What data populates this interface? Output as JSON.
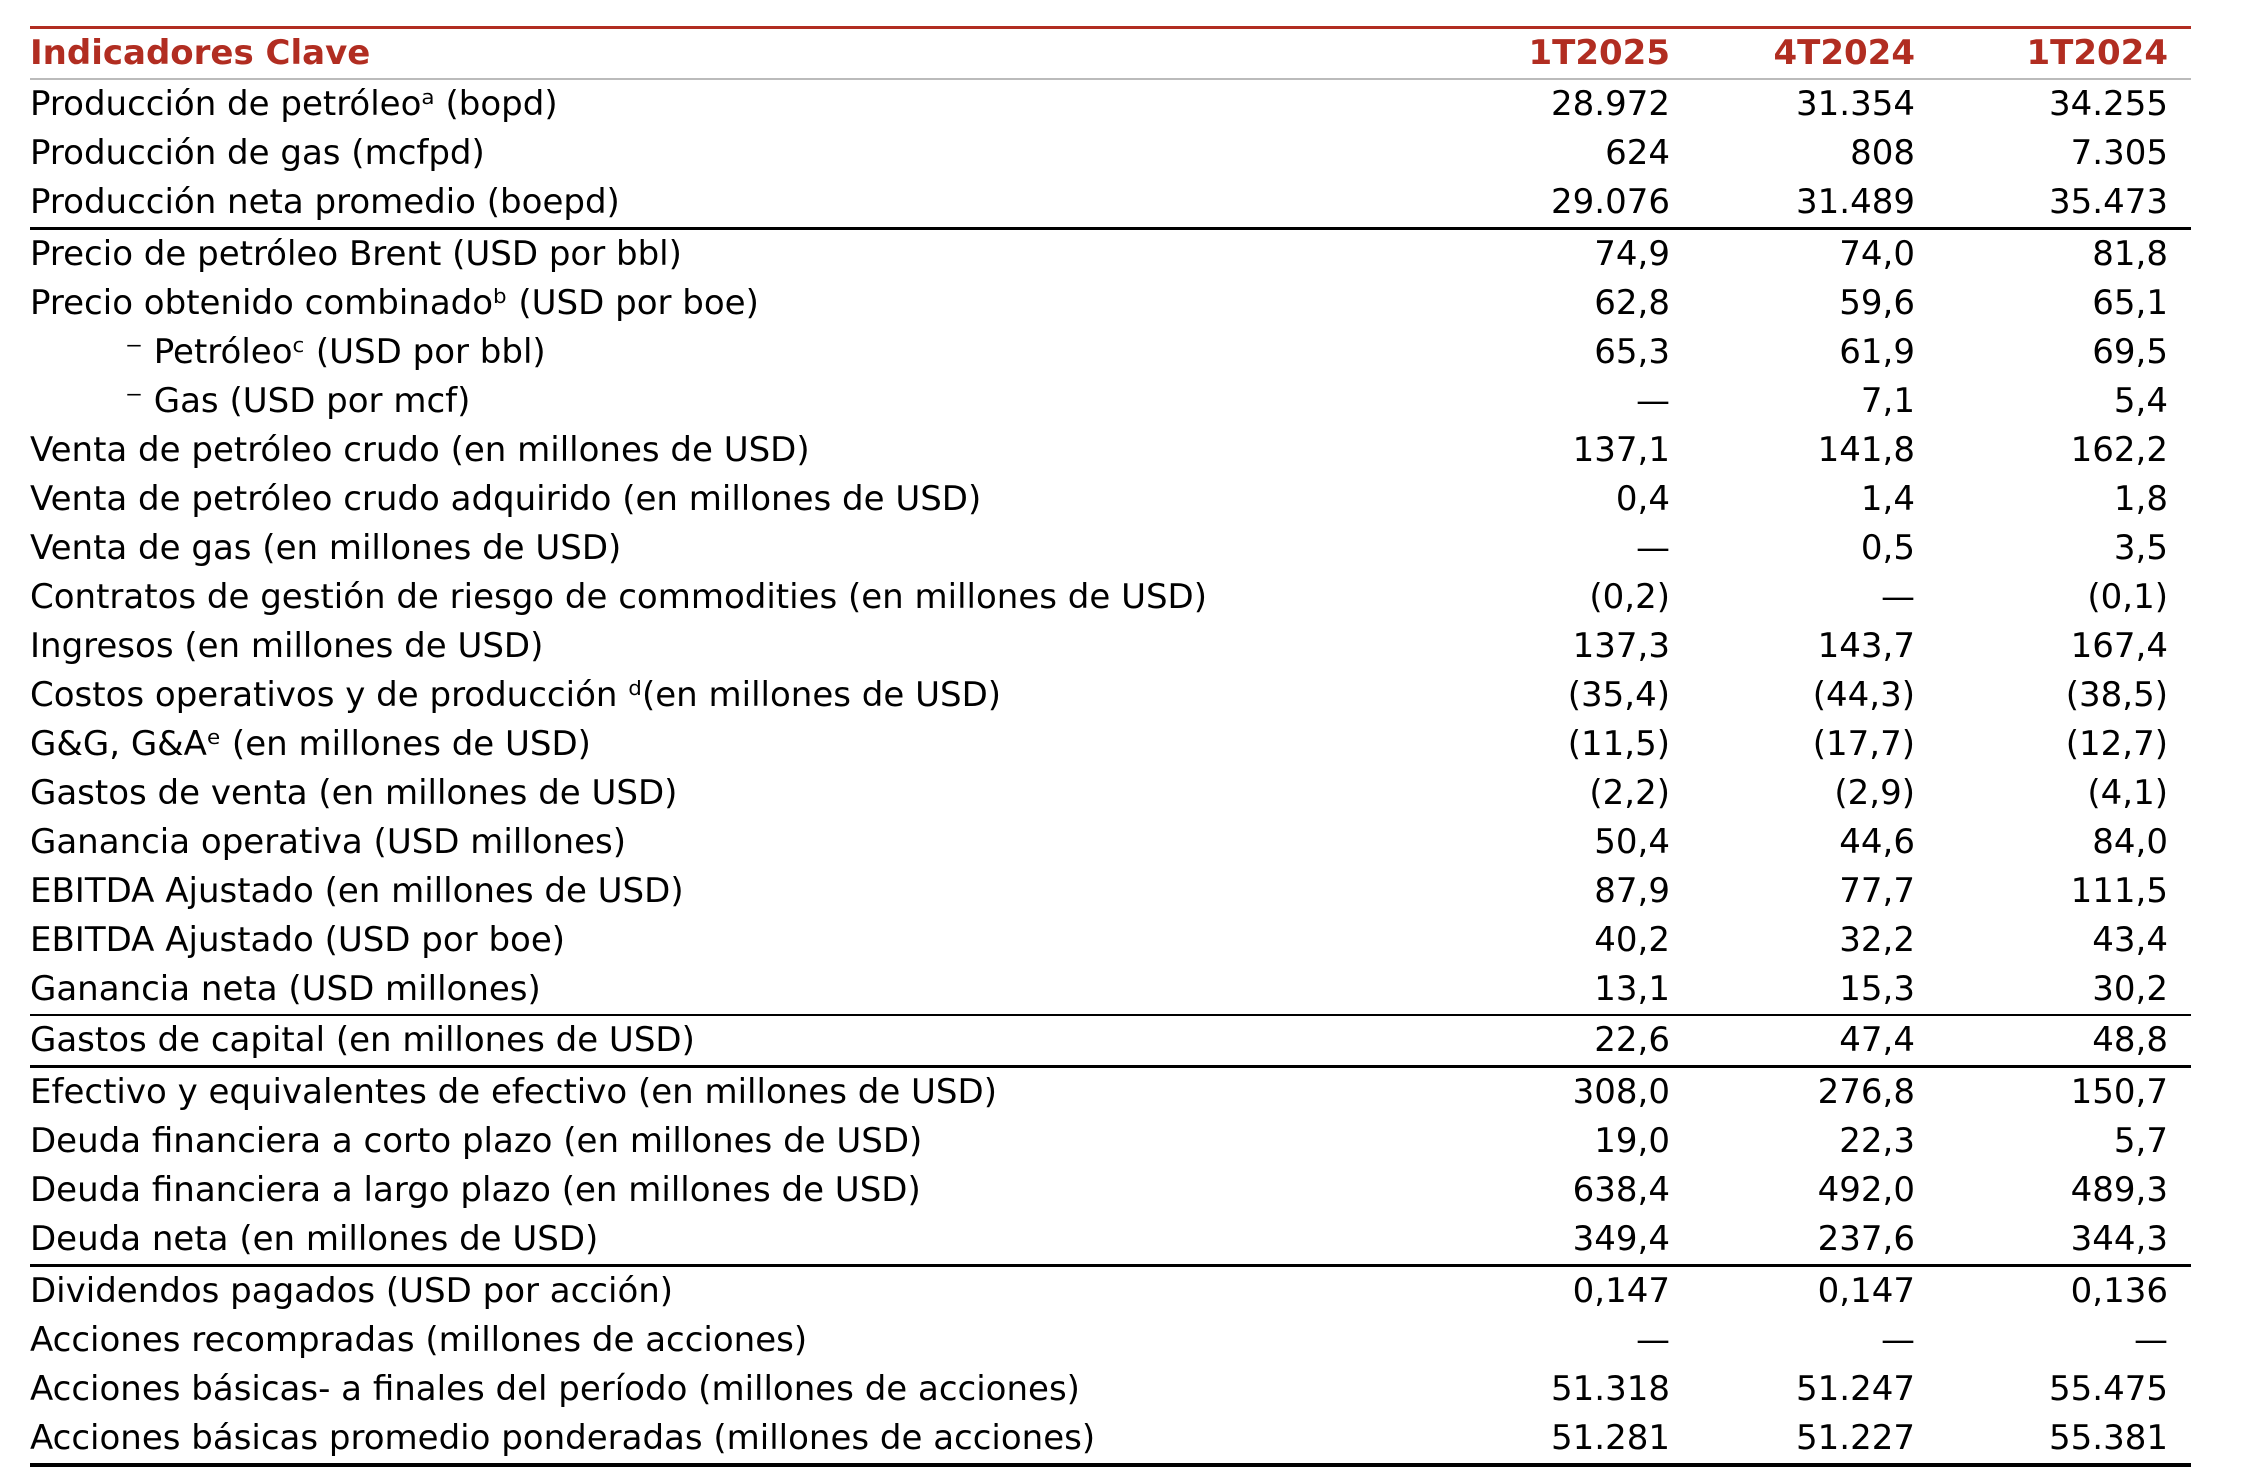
{
  "colors": {
    "accent_red": "#B12D21",
    "header_underline_gray": "#BBBBBB",
    "rule_black": "#000000",
    "text": "#000000",
    "background": "#FFFFFF"
  },
  "table": {
    "header": {
      "label": "Indicadores Clave",
      "columns": [
        "1T2025",
        "4T2024",
        "1T2024"
      ]
    },
    "rows": [
      {
        "label": "Producción de petróleoᵃ (bopd)",
        "values": [
          "28.972",
          "31.354",
          "34.255"
        ]
      },
      {
        "label": "Producción de gas (mcfpd)",
        "values": [
          "624",
          "808",
          "7.305"
        ]
      },
      {
        "label": "Producción neta promedio (boepd)",
        "values": [
          "29.076",
          "31.489",
          "35.473"
        ],
        "divider": "thick"
      },
      {
        "label": "Precio de petróleo Brent (USD por bbl)",
        "values": [
          "74,9",
          "74,0",
          "81,8"
        ]
      },
      {
        "label": "Precio obtenido combinadoᵇ (USD por boe)",
        "values": [
          "62,8",
          "59,6",
          "65,1"
        ]
      },
      {
        "label": "⁻ Petróleoᶜ (USD por bbl)",
        "values": [
          "65,3",
          "61,9",
          "69,5"
        ],
        "indent": true
      },
      {
        "label": "⁻ Gas (USD por mcf)",
        "values": [
          "—",
          "7,1",
          "5,4"
        ],
        "indent": true
      },
      {
        "label": "Venta de petróleo crudo (en millones de USD)",
        "values": [
          "137,1",
          "141,8",
          "162,2"
        ]
      },
      {
        "label": "Venta de petróleo crudo adquirido (en millones de USD)",
        "values": [
          "0,4",
          "1,4",
          "1,8"
        ]
      },
      {
        "label": "Venta de gas (en millones de USD)",
        "values": [
          "—",
          "0,5",
          "3,5"
        ]
      },
      {
        "label": "Contratos de gestión de riesgo de commodities (en millones de USD)",
        "values": [
          "(0,2)",
          "—",
          "(0,1)"
        ]
      },
      {
        "label": "Ingresos (en millones de USD)",
        "values": [
          "137,3",
          "143,7",
          "167,4"
        ]
      },
      {
        "label": "Costos operativos y de producción ᵈ(en millones de USD)",
        "values": [
          "(35,4)",
          "(44,3)",
          "(38,5)"
        ]
      },
      {
        "label": "G&G, G&Aᵉ (en millones de USD)",
        "values": [
          "(11,5)",
          "(17,7)",
          "(12,7)"
        ]
      },
      {
        "label": "Gastos de venta (en millones de USD)",
        "values": [
          "(2,2)",
          "(2,9)",
          "(4,1)"
        ]
      },
      {
        "label": "Ganancia operativa (USD millones)",
        "values": [
          "50,4",
          "44,6",
          "84,0"
        ]
      },
      {
        "label": "EBITDA Ajustado (en millones de USD)",
        "values": [
          "87,9",
          "77,7",
          "111,5"
        ]
      },
      {
        "label": "EBITDA Ajustado (USD por boe)",
        "values": [
          "40,2",
          "32,2",
          "43,4"
        ]
      },
      {
        "label": "Ganancia neta (USD millones)",
        "values": [
          "13,1",
          "15,3",
          "30,2"
        ],
        "divider": "thin"
      },
      {
        "label": "Gastos de capital (en millones de USD)",
        "values": [
          "22,6",
          "47,4",
          "48,8"
        ],
        "divider": "medium"
      },
      {
        "label": "Efectivo y equivalentes de efectivo (en millones de USD)",
        "values": [
          "308,0",
          "276,8",
          "150,7"
        ]
      },
      {
        "label": "Deuda financiera a corto plazo (en millones de USD)",
        "values": [
          "19,0",
          "22,3",
          "5,7"
        ]
      },
      {
        "label": "Deuda financiera a largo plazo (en millones de USD)",
        "values": [
          "638,4",
          "492,0",
          "489,3"
        ]
      },
      {
        "label": "Deuda neta (en millones de USD)",
        "values": [
          "349,4",
          "237,6",
          "344,3"
        ],
        "divider": "medium"
      },
      {
        "label": "Dividendos pagados (USD por acción)",
        "values": [
          "0,147",
          "0,147",
          "0,136"
        ]
      },
      {
        "label": "Acciones recompradas (millones de acciones)",
        "values": [
          "—",
          "—",
          "—"
        ]
      },
      {
        "label": "Acciones básicas- a finales del período (millones de acciones)",
        "values": [
          "51.318",
          "51.247",
          "55.475"
        ]
      },
      {
        "label": "Acciones básicas promedio ponderadas (millones de acciones)",
        "values": [
          "51.281",
          "51.227",
          "55.381"
        ],
        "divider": "bottom"
      }
    ]
  }
}
